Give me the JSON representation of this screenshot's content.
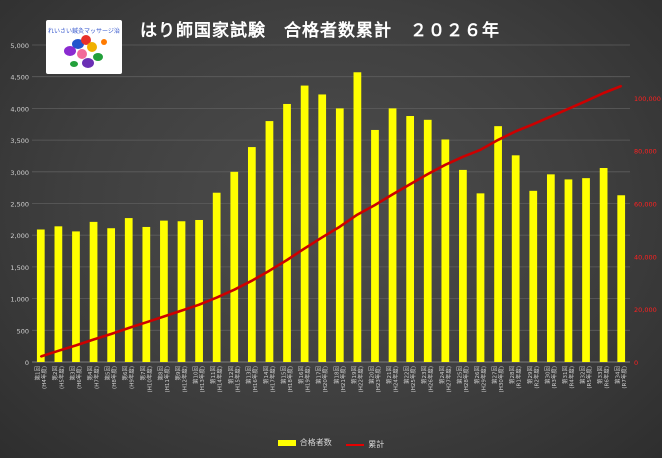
{
  "title": "はり師国家試験　合格者数累計　２０２６年",
  "logo": {
    "text": "れいさい鍼灸マッサージ治療院"
  },
  "colors": {
    "bar": "#ffff00",
    "line": "#cc0000",
    "left_axis": "#d0d0d0",
    "right_axis": "#ff2020"
  },
  "legend": {
    "position": "bottom",
    "items": [
      {
        "label": "合格者数",
        "kind": "bar"
      },
      {
        "label": "累計",
        "kind": "line"
      }
    ]
  },
  "chart_data": {
    "type": "bar",
    "grid": true,
    "categories": [
      "第1回",
      "第2回",
      "第3回",
      "第4回",
      "第5回",
      "第6回",
      "第7回",
      "第8回",
      "第9回",
      "第10回",
      "第11回",
      "第12回",
      "第13回",
      "第14回",
      "第15回",
      "第16回",
      "第17回",
      "第18回",
      "第19回",
      "第20回",
      "第21回",
      "第22回",
      "第23回",
      "第24回",
      "第25回",
      "第26回",
      "第27回",
      "第28回",
      "第29回",
      "第30回",
      "第31回",
      "第32回",
      "第33回",
      "第34回"
    ],
    "sublabels": [
      "(H4年度)",
      "(H5年度)",
      "(H6年度)",
      "(H7年度)",
      "(H8年度)",
      "(H9年度)",
      "(H10年度)",
      "(H11年度)",
      "(H12年度)",
      "(H13年度)",
      "(H14年度)",
      "(H15年度)",
      "(H16年度)",
      "(H17年度)",
      "(H18年度)",
      "(H19年度)",
      "(H20年度)",
      "(H21年度)",
      "(H22年度)",
      "(H23年度)",
      "(H24年度)",
      "(H25年度)",
      "(H26年度)",
      "(H27年度)",
      "(H28年度)",
      "(H29年度)",
      "(H30年度)",
      "(R1年度)",
      "(R2年度)",
      "(R3年度)",
      "(R4年度)",
      "(R5年度)",
      "(R6年度)",
      "(R7年度)"
    ],
    "series": [
      {
        "name": "合格者数",
        "type": "bar",
        "axis": "left",
        "values": [
          2090,
          2140,
          2060,
          2210,
          2110,
          2270,
          2130,
          2230,
          2220,
          2240,
          2670,
          3000,
          3390,
          3800,
          4070,
          4360,
          4220,
          4000,
          4570,
          3660,
          4000,
          3880,
          3820,
          3510,
          3030,
          2660,
          3720,
          3260,
          2700,
          2960,
          2880,
          2900,
          3060,
          2630
        ]
      },
      {
        "name": "累計",
        "type": "line",
        "axis": "right",
        "values": [
          2090,
          4230,
          6290,
          8500,
          10610,
          12880,
          15010,
          17240,
          19460,
          21700,
          24370,
          27370,
          30760,
          34560,
          38630,
          42990,
          47210,
          51210,
          55780,
          59440,
          63440,
          67320,
          71140,
          74650,
          77680,
          80340,
          84060,
          87320,
          90020,
          92980,
          95860,
          98760,
          101820,
          104450
        ]
      }
    ],
    "y_left": {
      "ylim": [
        0,
        5000
      ],
      "ticks": [
        "0",
        "500",
        "1,000",
        "1,500",
        "2,000",
        "2,500",
        "3,000",
        "3,500",
        "4,000",
        "4,500",
        "5,000"
      ]
    },
    "y_right": {
      "ylim": [
        0,
        120000
      ],
      "ticks": [
        "0",
        "20,000",
        "40,000",
        "60,000",
        "80,000",
        "100,000"
      ]
    }
  }
}
